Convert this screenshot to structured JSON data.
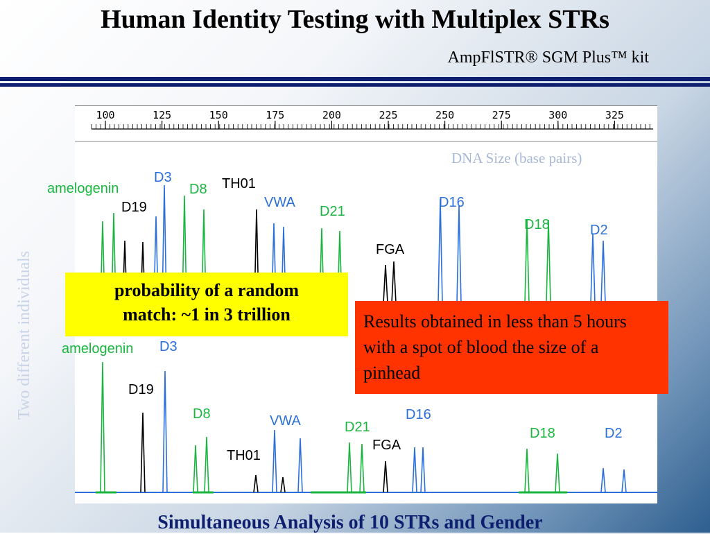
{
  "title": "Human Identity Testing with Multiplex STRs",
  "subtitle": "AmpFlSTR® SGM Plus™ kit",
  "side_label": "Two different individuals",
  "x_axis_label": "DNA Size (base pairs)",
  "ruler_ticks": [
    "100",
    "125",
    "150",
    "175",
    "200",
    "225",
    "250",
    "275",
    "300",
    "325"
  ],
  "top_loci": [
    {
      "text": "amelogenin",
      "color": "green"
    },
    {
      "text": "D3",
      "color": "blue"
    },
    {
      "text": "D8",
      "color": "green"
    },
    {
      "text": "TH01",
      "color": "black"
    },
    {
      "text": "D19",
      "color": "black"
    },
    {
      "text": "VWA",
      "color": "blue"
    },
    {
      "text": "D21",
      "color": "green"
    },
    {
      "text": "D16",
      "color": "blue"
    },
    {
      "text": "D18",
      "color": "green"
    },
    {
      "text": "D2",
      "color": "blue"
    },
    {
      "text": "FGA",
      "color": "black"
    }
  ],
  "bottom_loci": [
    {
      "text": "amelogenin",
      "color": "green"
    },
    {
      "text": "D3",
      "color": "blue"
    },
    {
      "text": "D19",
      "color": "black"
    },
    {
      "text": "D8",
      "color": "green"
    },
    {
      "text": "VWA",
      "color": "blue"
    },
    {
      "text": "D16",
      "color": "blue"
    },
    {
      "text": "D21",
      "color": "green"
    },
    {
      "text": "FGA",
      "color": "black"
    },
    {
      "text": "D18",
      "color": "green"
    },
    {
      "text": "D2",
      "color": "blue"
    },
    {
      "text": "TH01",
      "color": "black"
    }
  ],
  "callout_yellow": [
    "probability of a random",
    "match: ~1 in 3 trillion"
  ],
  "callout_red": "Results obtained in less than 5 hours with a spot of blood the size of a pinhead",
  "footer": "Simultaneous Analysis of 10 STRs and Gender",
  "colors": {
    "green": "#19b53f",
    "blue": "#2b6fd8",
    "black": "#000000",
    "navy": "#0d1f6e",
    "yellow": "#ffff00",
    "red": "#ff3300"
  }
}
